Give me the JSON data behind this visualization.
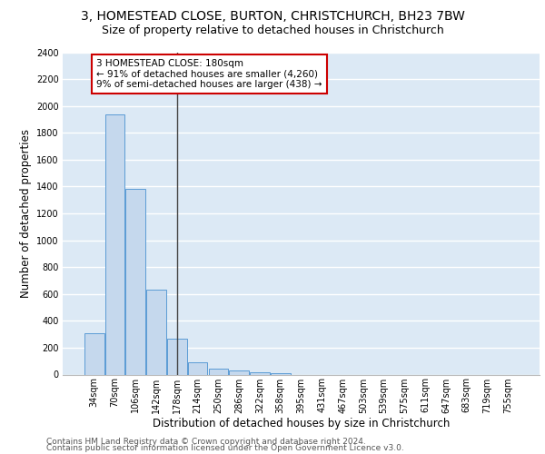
{
  "title1": "3, HOMESTEAD CLOSE, BURTON, CHRISTCHURCH, BH23 7BW",
  "title2": "Size of property relative to detached houses in Christchurch",
  "xlabel": "Distribution of detached houses by size in Christchurch",
  "ylabel": "Number of detached properties",
  "categories": [
    "34sqm",
    "70sqm",
    "106sqm",
    "142sqm",
    "178sqm",
    "214sqm",
    "250sqm",
    "286sqm",
    "322sqm",
    "358sqm",
    "395sqm",
    "431sqm",
    "467sqm",
    "503sqm",
    "539sqm",
    "575sqm",
    "611sqm",
    "647sqm",
    "683sqm",
    "719sqm",
    "755sqm"
  ],
  "values": [
    310,
    1940,
    1380,
    630,
    265,
    90,
    45,
    30,
    20,
    10,
    0,
    0,
    0,
    0,
    0,
    0,
    0,
    0,
    0,
    0,
    0
  ],
  "bar_color": "#c5d8ed",
  "bar_edge_color": "#5b9bd5",
  "highlight_line_idx": 4,
  "annotation_line1": "3 HOMESTEAD CLOSE: 180sqm",
  "annotation_line2": "← 91% of detached houses are smaller (4,260)",
  "annotation_line3": "9% of semi-detached houses are larger (438) →",
  "annotation_box_facecolor": "#ffffff",
  "annotation_box_edgecolor": "#cc0000",
  "ylim_min": 0,
  "ylim_max": 2400,
  "yticks": [
    0,
    200,
    400,
    600,
    800,
    1000,
    1200,
    1400,
    1600,
    1800,
    2000,
    2200,
    2400
  ],
  "footer1": "Contains HM Land Registry data © Crown copyright and database right 2024.",
  "footer2": "Contains public sector information licensed under the Open Government Licence v3.0.",
  "bg_color": "#dce9f5",
  "grid_color": "#ffffff",
  "title1_fontsize": 10,
  "title2_fontsize": 9,
  "tick_fontsize": 7,
  "ylabel_fontsize": 8.5,
  "xlabel_fontsize": 8.5,
  "ann_fontsize": 7.5,
  "footer_fontsize": 6.5
}
